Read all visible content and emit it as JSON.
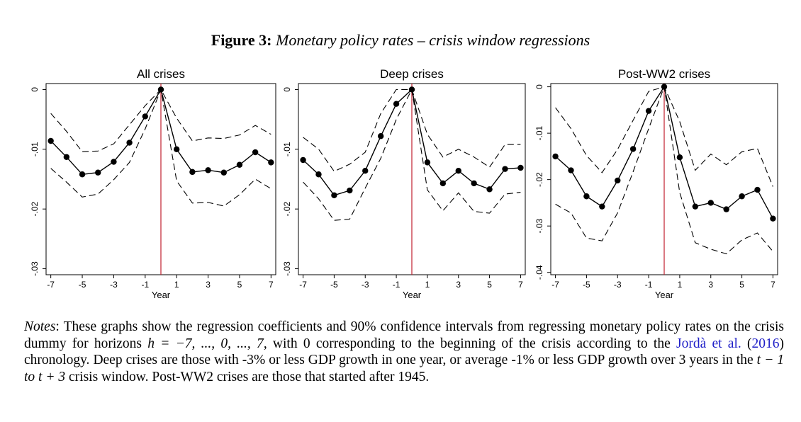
{
  "figure": {
    "label": "Figure 3:",
    "caption": "Monetary policy rates – crisis window regressions"
  },
  "chart_data": [
    {
      "type": "line",
      "title": "All crises",
      "xlabel": "Year",
      "ylabel": "",
      "x": [
        -7,
        -6,
        -5,
        -4,
        -3,
        -2,
        -1,
        0,
        1,
        2,
        3,
        4,
        5,
        6,
        7
      ],
      "xticks": [
        -7,
        -5,
        -3,
        -1,
        1,
        3,
        5,
        7
      ],
      "yticks": [
        0,
        -0.01,
        -0.02,
        -0.03
      ],
      "ytick_labels": [
        "0",
        "-.01",
        "-.02",
        "-.03"
      ],
      "ylim": [
        -0.031,
        0.001
      ],
      "xlim": [
        -7.3,
        7.3
      ],
      "vline": 0,
      "series": [
        {
          "role": "coefficient",
          "values": [
            -0.0086,
            -0.0113,
            -0.0142,
            -0.0139,
            -0.0121,
            -0.0089,
            -0.0045,
            0,
            -0.01,
            -0.0138,
            -0.0135,
            -0.0139,
            -0.0126,
            -0.0105,
            -0.0122
          ]
        },
        {
          "role": "upper-90",
          "values": [
            -0.004,
            -0.007,
            -0.0104,
            -0.0103,
            -0.0091,
            -0.0059,
            -0.0027,
            0,
            -0.0048,
            -0.0086,
            -0.0081,
            -0.0082,
            -0.0076,
            -0.006,
            -0.0075
          ]
        },
        {
          "role": "lower-90",
          "values": [
            -0.0132,
            -0.0155,
            -0.018,
            -0.0175,
            -0.0151,
            -0.0122,
            -0.0066,
            0,
            -0.0153,
            -0.019,
            -0.0189,
            -0.0195,
            -0.0176,
            -0.015,
            -0.0166
          ]
        }
      ]
    },
    {
      "type": "line",
      "title": "Deep crises",
      "xlabel": "Year",
      "ylabel": "",
      "x": [
        -7,
        -6,
        -5,
        -4,
        -3,
        -2,
        -1,
        0,
        1,
        2,
        3,
        4,
        5,
        6,
        7
      ],
      "xticks": [
        -7,
        -5,
        -3,
        -1,
        1,
        3,
        5,
        7
      ],
      "yticks": [
        0,
        -0.01,
        -0.02,
        -0.03
      ],
      "ytick_labels": [
        "0",
        "-.01",
        "-.02",
        "-.03"
      ],
      "ylim": [
        -0.031,
        0.001
      ],
      "xlim": [
        -7.3,
        7.3
      ],
      "vline": 0,
      "series": [
        {
          "role": "coefficient",
          "values": [
            -0.0118,
            -0.0142,
            -0.0177,
            -0.0169,
            -0.0136,
            -0.0078,
            -0.0024,
            0,
            -0.0122,
            -0.0157,
            -0.0136,
            -0.0157,
            -0.0167,
            -0.0133,
            -0.0131
          ]
        },
        {
          "role": "upper-90",
          "values": [
            -0.008,
            -0.01,
            -0.0137,
            -0.0125,
            -0.0105,
            -0.004,
            0,
            0,
            -0.0075,
            -0.0113,
            -0.01,
            -0.0113,
            -0.013,
            -0.0092,
            -0.0092
          ]
        },
        {
          "role": "lower-90",
          "values": [
            -0.0155,
            -0.0183,
            -0.0219,
            -0.0217,
            -0.0165,
            -0.0115,
            -0.005,
            0,
            -0.0168,
            -0.0203,
            -0.0173,
            -0.0204,
            -0.0207,
            -0.0175,
            -0.0172
          ]
        }
      ]
    },
    {
      "type": "line",
      "title": "Post-WW2 crises",
      "xlabel": "Year",
      "ylabel": "",
      "x": [
        -7,
        -6,
        -5,
        -4,
        -3,
        -2,
        -1,
        0,
        1,
        2,
        3,
        4,
        5,
        6,
        7
      ],
      "xticks": [
        -7,
        -5,
        -3,
        -1,
        1,
        3,
        5,
        7
      ],
      "yticks": [
        0,
        -0.01,
        -0.02,
        -0.03,
        -0.04
      ],
      "ytick_labels": [
        "0",
        "-.01",
        "-.02",
        "-.03",
        "-.04"
      ],
      "ylim": [
        -0.0405,
        0.0007
      ],
      "xlim": [
        -7.3,
        7.3
      ],
      "vline": 0,
      "series": [
        {
          "role": "coefficient",
          "values": [
            -0.015,
            -0.018,
            -0.0236,
            -0.0258,
            -0.0202,
            -0.0134,
            -0.0052,
            0,
            -0.0152,
            -0.0258,
            -0.025,
            -0.0264,
            -0.0236,
            -0.0222,
            -0.0284
          ]
        },
        {
          "role": "upper-90",
          "values": [
            -0.0045,
            -0.009,
            -0.0148,
            -0.0185,
            -0.0135,
            -0.0072,
            -0.001,
            0,
            -0.0075,
            -0.018,
            -0.0145,
            -0.0168,
            -0.014,
            -0.0133,
            -0.0215
          ]
        },
        {
          "role": "lower-90",
          "values": [
            -0.0253,
            -0.0272,
            -0.0326,
            -0.0332,
            -0.0272,
            -0.0183,
            -0.009,
            0,
            -0.0228,
            -0.0336,
            -0.035,
            -0.036,
            -0.033,
            -0.0315,
            -0.0355
          ]
        }
      ]
    }
  ],
  "notes": {
    "label": "Notes",
    "text_1": ": These graphs show the regression coefficients and 90% confidence intervals from regressing monetary policy rates on the crisis dummy for horizons ",
    "math_h": "h = −7, ..., 0, ..., 7",
    "text_2": ", with 0 corresponding to the beginning of the crisis according to the ",
    "citation_name": "Jordà et al.",
    "citation_year": "2016",
    "text_3": ") chronology. Deep crises are those with -3% or less GDP growth in one year, or average -1% or less GDP growth over 3 years in the ",
    "math_window": "t − 1 to t + 3",
    "text_4": " crisis window. Post-WW2 crises are those that started after 1945."
  },
  "colors": {
    "line": "#000000",
    "marker": "#000000",
    "vline": "#c0202e",
    "link": "#2020c8"
  }
}
